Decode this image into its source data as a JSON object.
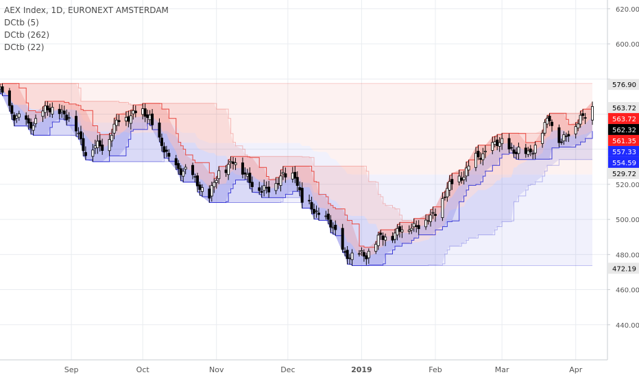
{
  "legend": {
    "title": "AEX Index, 1D, EURONEXT AMSTERDAM",
    "line1": "DCtb (5)",
    "line2": "DCtb (262)",
    "line3": "DCtb (22)"
  },
  "colors": {
    "up_candle": "#ffffff",
    "down_candle": "#000000",
    "upper_band": "#e8443c",
    "lower_band": "#3a3ad6",
    "grid": "#e9ecf0",
    "axis_text": "#555555"
  },
  "chart_data": {
    "type": "candlestick",
    "title": "AEX Index, 1D, EURONEXT AMSTERDAM",
    "indicators": [
      "DCtb (5)",
      "DCtb (262)",
      "DCtb (22)"
    ],
    "ylim": [
      420,
      625
    ],
    "y_ticks": [
      440,
      460,
      480,
      500,
      520,
      540,
      560,
      580,
      600,
      620
    ],
    "y_tick_labels": [
      "440.00",
      "460.00",
      "480.00",
      "500.00",
      "520.00",
      "",
      "",
      "",
      "600.00",
      "620.00"
    ],
    "x_ticks": [
      "Sep",
      "Oct",
      "Nov",
      "Dec",
      "2019",
      "Feb",
      "Mar",
      "Apr"
    ],
    "x_range": [
      "2018-08-02",
      "2019-04-08"
    ],
    "x_tick_dates": [
      "2018-09-01",
      "2018-10-01",
      "2018-11-01",
      "2018-12-01",
      "2019-01-01",
      "2019-02-01",
      "2019-03-01",
      "2019-04-01"
    ],
    "close_path": [
      [
        "2018-08-02",
        572
      ],
      [
        "2018-08-08",
        560
      ],
      [
        "2018-08-14",
        553
      ],
      [
        "2018-08-20",
        561
      ],
      [
        "2018-08-27",
        563
      ],
      [
        "2018-09-03",
        552
      ],
      [
        "2018-09-07",
        539
      ],
      [
        "2018-09-14",
        542
      ],
      [
        "2018-09-21",
        556
      ],
      [
        "2018-09-28",
        562
      ],
      [
        "2018-10-04",
        558
      ],
      [
        "2018-10-08",
        545
      ],
      [
        "2018-10-12",
        533
      ],
      [
        "2018-10-18",
        528
      ],
      [
        "2018-10-25",
        520
      ],
      [
        "2018-10-29",
        512
      ],
      [
        "2018-11-02",
        527
      ],
      [
        "2018-11-08",
        533
      ],
      [
        "2018-11-14",
        525
      ],
      [
        "2018-11-20",
        515
      ],
      [
        "2018-11-26",
        522
      ],
      [
        "2018-11-30",
        524
      ],
      [
        "2018-12-04",
        527
      ],
      [
        "2018-12-07",
        510
      ],
      [
        "2018-12-12",
        505
      ],
      [
        "2018-12-18",
        499
      ],
      [
        "2018-12-24",
        483
      ],
      [
        "2018-12-28",
        478
      ],
      [
        "2019-01-03",
        481
      ],
      [
        "2019-01-09",
        489
      ],
      [
        "2019-01-16",
        493
      ],
      [
        "2019-01-23",
        497
      ],
      [
        "2019-01-30",
        500
      ],
      [
        "2019-02-05",
        515
      ],
      [
        "2019-02-11",
        524
      ],
      [
        "2019-02-18",
        534
      ],
      [
        "2019-02-25",
        542
      ],
      [
        "2019-03-01",
        543
      ],
      [
        "2019-03-07",
        539
      ],
      [
        "2019-03-12",
        537
      ],
      [
        "2019-03-18",
        550
      ],
      [
        "2019-03-21",
        557
      ],
      [
        "2019-03-26",
        545
      ],
      [
        "2019-03-29",
        548
      ],
      [
        "2019-04-03",
        559
      ],
      [
        "2019-04-08",
        563
      ]
    ],
    "price_labels": [
      {
        "label": "576.90",
        "value": 576.9,
        "color": "#e8e8e8",
        "text_color": "#000000"
      },
      {
        "label": "563.72",
        "value": 563.72,
        "color": "#e8e8e8",
        "text_color": "#000000"
      },
      {
        "label": "563.72",
        "value": 563.72,
        "color": "#ff1f1f",
        "text_color": "#ffffff"
      },
      {
        "label": "562.32",
        "value": 562.32,
        "color": "#000000",
        "text_color": "#ffffff"
      },
      {
        "label": "561.35",
        "value": 561.35,
        "color": "#ff1f1f",
        "text_color": "#ffffff"
      },
      {
        "label": "557.33",
        "value": 557.33,
        "color": "#1f2bff",
        "text_color": "#ffffff"
      },
      {
        "label": "554.59",
        "value": 554.59,
        "color": "#1f2bff",
        "text_color": "#ffffff"
      },
      {
        "label": "529.72",
        "value": 529.72,
        "color": "#e8e8e8",
        "text_color": "#000000"
      },
      {
        "label": "472.19",
        "value": 472.19,
        "color": "#e8e8e8",
        "text_color": "#000000"
      }
    ]
  }
}
